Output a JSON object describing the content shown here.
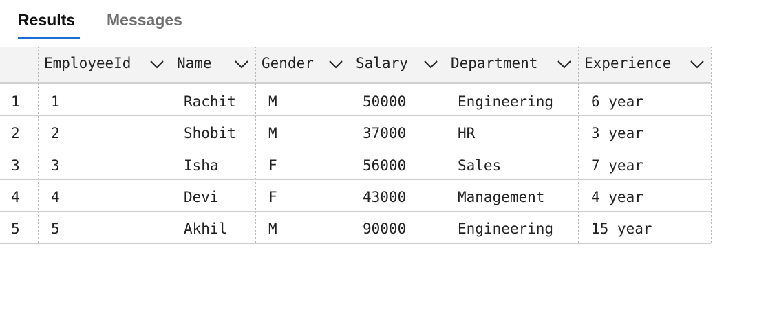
{
  "tabs": [
    "Results",
    "Messages"
  ],
  "table": {
    "columns": [
      "EmployeeId",
      "Name",
      "Gender",
      "Salary",
      "Department",
      "Experience"
    ],
    "rows": [
      {
        "row_number": 1,
        "cells": [
          1,
          "Rachit",
          "M",
          50000,
          "Engineering",
          "6 year"
        ]
      },
      {
        "row_number": 2,
        "cells": [
          2,
          "Shobit",
          "M",
          37000,
          "HR",
          "3 year"
        ]
      },
      {
        "row_number": 3,
        "cells": [
          3,
          "Isha",
          "F",
          56000,
          "Sales",
          "7 year"
        ]
      },
      {
        "row_number": 4,
        "cells": [
          4,
          "Devi",
          "F",
          43000,
          "Management",
          "4 year"
        ]
      },
      {
        "row_number": 5,
        "cells": [
          5,
          "Akhil",
          "M",
          90000,
          "Engineering",
          "15 year"
        ]
      }
    ]
  }
}
